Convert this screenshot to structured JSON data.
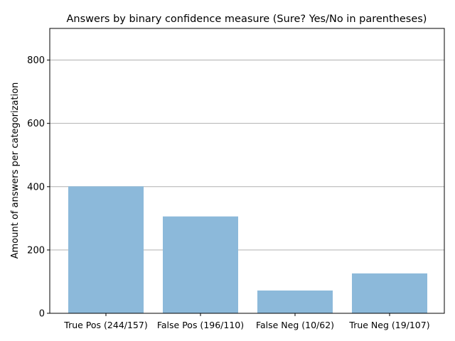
{
  "chart_data": {
    "type": "bar",
    "title": "Answers by binary confidence measure (Sure? Yes/No in parentheses)",
    "xlabel": "",
    "ylabel": "Amount of answers per categorization",
    "categories": [
      "True Pos (244/157)",
      "False Pos (196/110)",
      "False Neg (10/62)",
      "True Neg (19/107)"
    ],
    "values": [
      401,
      306,
      72,
      126
    ],
    "ylim": [
      0,
      900
    ],
    "yticks": [
      0,
      200,
      400,
      600,
      800
    ],
    "grid": "horizontal",
    "bar_color": "#8cb9da",
    "grid_color": "#b0b0b0"
  }
}
